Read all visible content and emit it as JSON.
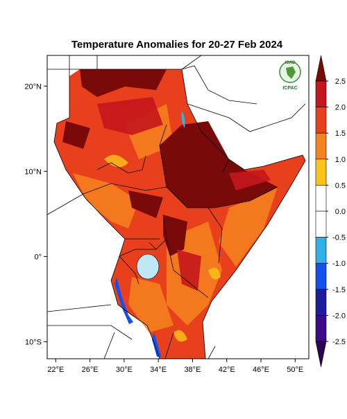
{
  "title": "Temperature Anomalies for 20-27 Feb 2024",
  "logo": {
    "top": "IGAD",
    "bottom": "ICPAC"
  },
  "map": {
    "lon_range": [
      21,
      51.6
    ],
    "lat_range": [
      -12,
      23.6
    ],
    "lon_ticks": [
      {
        "value": 22,
        "label": "22°E"
      },
      {
        "value": 26,
        "label": "26°E"
      },
      {
        "value": 30,
        "label": "30°E"
      },
      {
        "value": 34,
        "label": "34°E"
      },
      {
        "value": 38,
        "label": "38°E"
      },
      {
        "value": 42,
        "label": "42°E"
      },
      {
        "value": 46,
        "label": "46°E"
      },
      {
        "value": 50,
        "label": "50°E"
      }
    ],
    "lat_ticks": [
      {
        "value": 20,
        "label": "20°N"
      },
      {
        "value": 10,
        "label": "10°N"
      },
      {
        "value": 0,
        "label": "0°"
      },
      {
        "value": -10,
        "label": "10°S"
      }
    ]
  },
  "colorbar": {
    "levels": [
      2.5,
      {
        "value": 2,
        "label": "2.0"
      },
      1.5,
      {
        "value": 1,
        "label": "1.0"
      },
      0.5,
      {
        "value": 0,
        "label": "0.0"
      },
      -0.5,
      {
        "value": -1,
        "label": "-1.0"
      },
      -1.5,
      {
        "value": -2,
        "label": "-2.0"
      },
      -2.5
    ],
    "colors": [
      "#7a0a0a",
      "#c4161c",
      "#e8401c",
      "#f5821f",
      "#fcc419",
      "#ffffff",
      "#ffffff",
      "#2fb0e6",
      "#1450f0",
      "#1c1c9c",
      "#3d0a8a",
      "#2a0550"
    ]
  }
}
